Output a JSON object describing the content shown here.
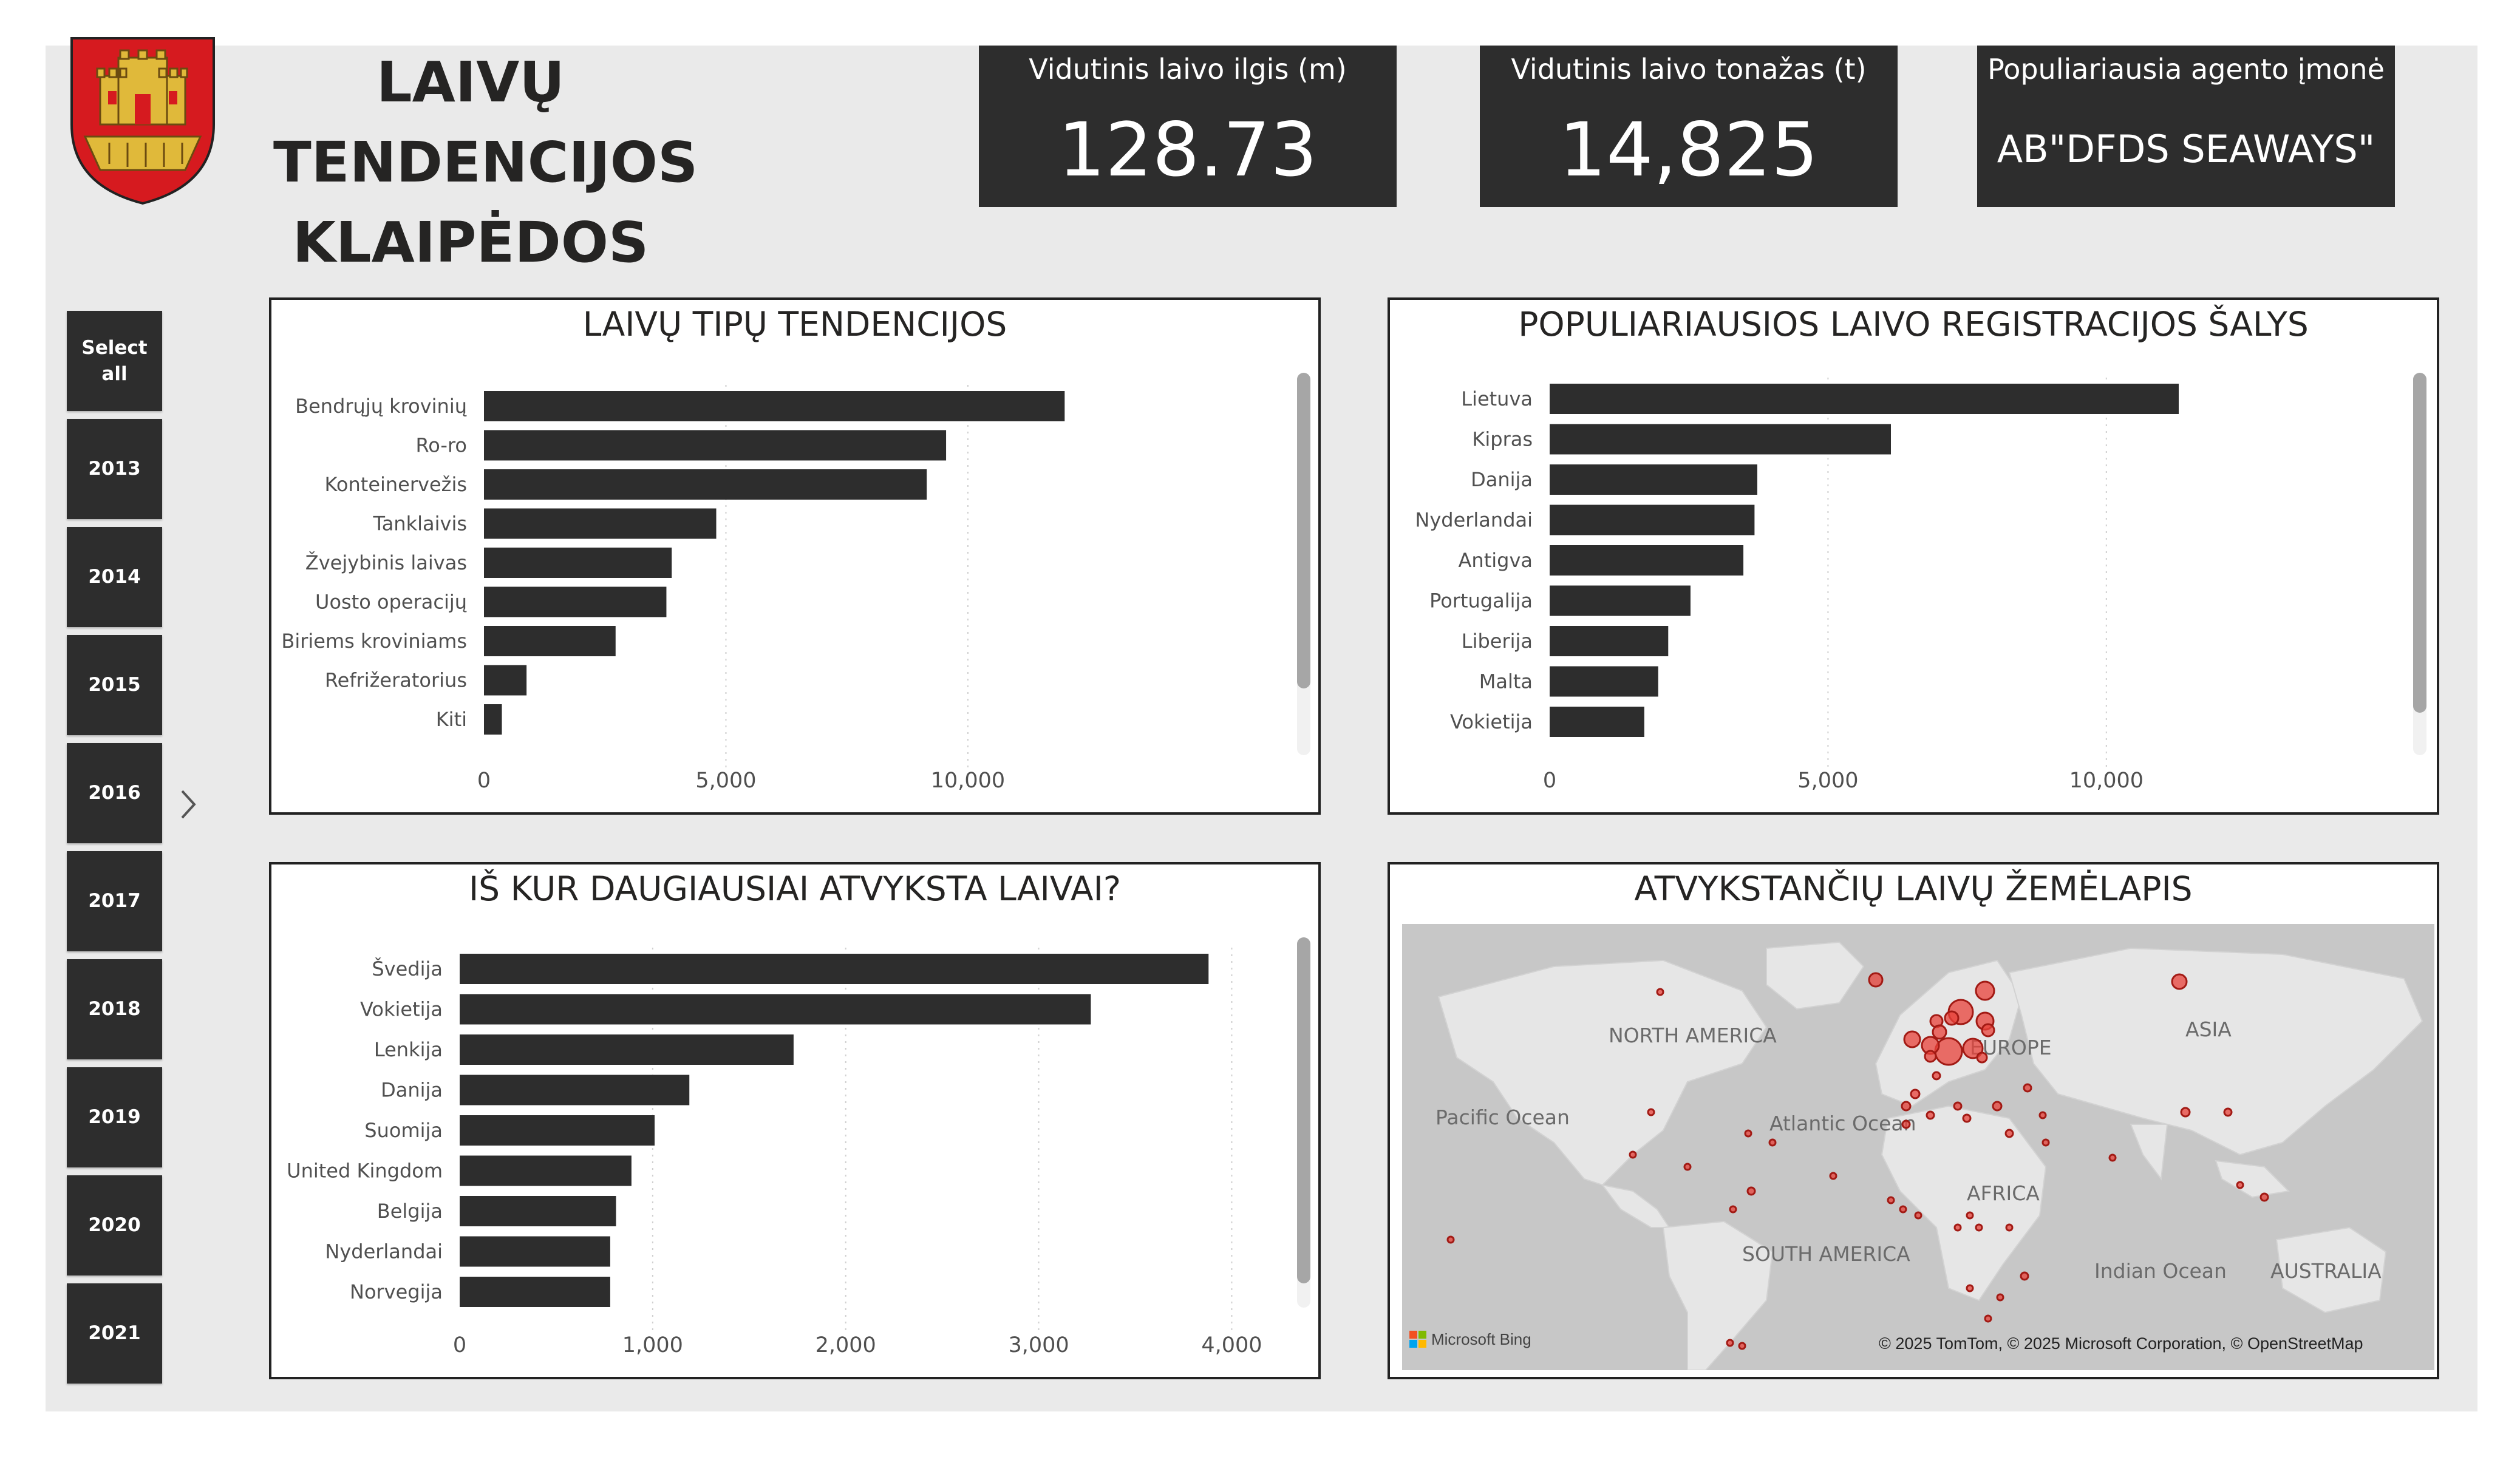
{
  "header": {
    "title_line1": "LAIVŲ TENDENCIJOS",
    "title_line2": "KLAIPĖDOS UOSTE"
  },
  "kpis": [
    {
      "label": "Vidutinis laivo ilgis (m)",
      "value": "128.73"
    },
    {
      "label": "Vidutinis laivo tonažas (t)",
      "value": "14,825"
    },
    {
      "label": "Populiariausia agento įmonė",
      "value": "AB\"DFDS SEAWAYS\""
    }
  ],
  "year_slicer": [
    "Select all",
    "2013",
    "2014",
    "2015",
    "2016",
    "2017",
    "2018",
    "2019",
    "2020",
    "2021"
  ],
  "colors": {
    "bar": "#2d2d2d",
    "panel_bg": "#ffffff",
    "canvas": "#eaeaea",
    "map_land": "#e6e6e6",
    "map_water": "#c7c7c7",
    "marker": "#e8413a"
  },
  "charts": {
    "types": {
      "title": "LAIVŲ TIPŲ TENDENCIJOS",
      "chart_data": {
        "type": "bar",
        "orientation": "horizontal",
        "categories": [
          "Bendrųjų krovinių",
          "Ro-ro",
          "Konteinervežis",
          "Tanklaivis",
          "Žvejybinis laivas",
          "Uosto operacijų",
          "Biriems kroviniams",
          "Refrižeratorius",
          "Kiti"
        ],
        "values": [
          12000,
          9550,
          9150,
          4800,
          3880,
          3770,
          2720,
          880,
          370
        ],
        "xticks": [
          "0",
          "5,000",
          "10,000"
        ],
        "xlim": [
          0,
          13000
        ],
        "grid": true
      }
    },
    "countries": {
      "title": "POPULIARIAUSIOS LAIVO REGISTRACIJOS ŠALYS",
      "chart_data": {
        "type": "bar",
        "orientation": "horizontal",
        "categories": [
          "Lietuva",
          "Kipras",
          "Danija",
          "Nyderlandai",
          "Antigva",
          "Portugalija",
          "Liberija",
          "Malta",
          "Vokietija"
        ],
        "values": [
          11300,
          6130,
          3730,
          3680,
          3480,
          2530,
          2130,
          1950,
          1700
        ],
        "xticks": [
          "0",
          "5,000",
          "10,000"
        ],
        "xlim": [
          0,
          12500
        ],
        "grid": true
      }
    },
    "origins": {
      "title": "IŠ KUR DAUGIAUSIAI ATVYKSTA LAIVAI?",
      "chart_data": {
        "type": "bar",
        "orientation": "horizontal",
        "categories": [
          "Švedija",
          "Vokietija",
          "Lenkija",
          "Danija",
          "Suomija",
          "United Kingdom",
          "Belgija",
          "Nyderlandai",
          "Norvegija"
        ],
        "values": [
          3880,
          3270,
          1730,
          1190,
          1010,
          890,
          810,
          780,
          780
        ],
        "xticks": [
          "0",
          "1,000",
          "2,000",
          "3,000",
          "4,000"
        ],
        "xlim": [
          0,
          4200
        ],
        "grid": true
      }
    },
    "map": {
      "title": "ATVYKSTANČIŲ LAIVŲ ŽEMĖLAPIS",
      "labels": [
        "NORTH AMERICA",
        "ASIA",
        "EUROPE",
        "Pacific Ocean",
        "Atlantic Ocean",
        "AFRICA",
        "SOUTH AMERICA",
        "Indian Ocean",
        "AUSTRALIA"
      ],
      "attribution": "© 2025 TomTom, © 2025 Microsoft Corporation, © OpenStreetMap",
      "brand": "Microsoft Bing"
    }
  }
}
